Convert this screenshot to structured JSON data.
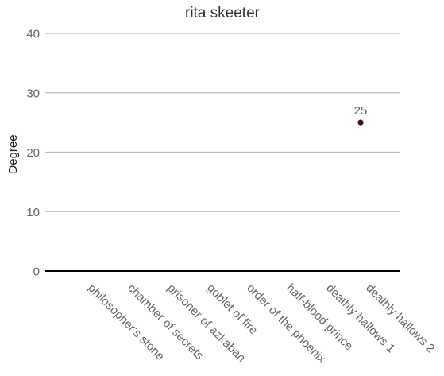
{
  "chart_data": {
    "type": "scatter",
    "title": "rita skeeter",
    "xlabel": "",
    "ylabel": "Degree",
    "categories": [
      "philosopher's stone",
      "chamber of secrets",
      "prisoner of azkaban",
      "goblet of fire",
      "order of the phoenix",
      "half-blood prince",
      "deathly hallows 1",
      "deathly hallows 2"
    ],
    "series": [
      {
        "values": [
          null,
          null,
          null,
          null,
          null,
          null,
          25,
          null
        ],
        "color": "#4a0a33",
        "data_labels": [
          "",
          "",
          "",
          "",
          "",
          "",
          "25",
          ""
        ]
      }
    ],
    "ylim": [
      0,
      40
    ],
    "yticks": [
      "0",
      "10",
      "20",
      "30",
      "40"
    ],
    "grid": true,
    "legend": "none",
    "colors": {
      "title": "#333333",
      "tick_label": "#666666",
      "axis_label": "#222222",
      "gridline": "#bdbdbd",
      "baseline": "#000000",
      "data_label": "#666666"
    }
  }
}
